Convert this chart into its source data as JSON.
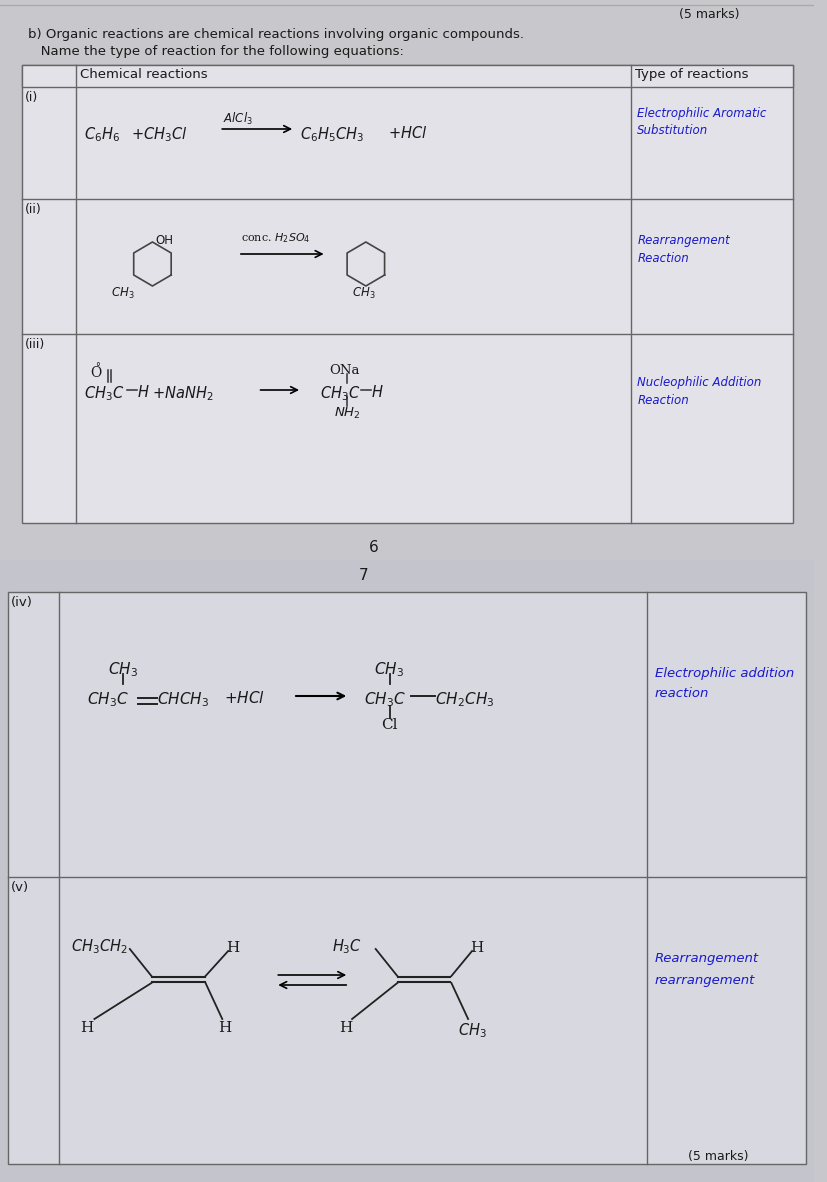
{
  "page_bg_top": "#c8c8cc",
  "page_bg_bottom": "#c0c0c8",
  "table_bg": "#e2e2e8",
  "border_color": "#666666",
  "text_color": "#1a1a1a",
  "blue_color": "#1a1acc",
  "dark_blue": "#2222aa",
  "title_line1": "b) Organic reactions are chemical reactions involving organic compounds.",
  "title_line2": "   Name the type of reaction for the following equations:",
  "marks_top": "(5 marks)",
  "col1_header": "Chemical reactions",
  "col2_header": "Type of reactions",
  "page_6": "6",
  "page_7": "7",
  "marks_bottom": "(5 marks)"
}
